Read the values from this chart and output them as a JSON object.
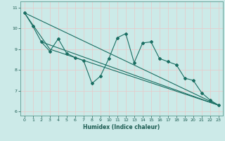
{
  "xlabel": "Humidex (Indice chaleur)",
  "bg_color": "#cceae8",
  "grid_color": "#b0d8d5",
  "line_color": "#1a6e62",
  "xlim": [
    -0.5,
    23.5
  ],
  "ylim": [
    5.8,
    11.3
  ],
  "xticks": [
    0,
    1,
    2,
    3,
    4,
    5,
    6,
    7,
    8,
    9,
    10,
    11,
    12,
    13,
    14,
    15,
    16,
    17,
    18,
    19,
    20,
    21,
    22,
    23
  ],
  "yticks": [
    6,
    7,
    8,
    9,
    10,
    11
  ],
  "line1_x": [
    0,
    1,
    2,
    3,
    4,
    5,
    6,
    7,
    8,
    9,
    10,
    11,
    12,
    13,
    14,
    15,
    16,
    17,
    18,
    19,
    20,
    21,
    22,
    23
  ],
  "line1_y": [
    10.75,
    10.1,
    9.35,
    8.9,
    9.5,
    8.8,
    8.6,
    8.45,
    7.35,
    7.7,
    8.55,
    9.55,
    9.75,
    8.35,
    9.3,
    9.35,
    8.55,
    8.4,
    8.25,
    7.6,
    7.5,
    6.9,
    6.55,
    6.3
  ],
  "line2_x": [
    0,
    23
  ],
  "line2_y": [
    10.75,
    6.3
  ],
  "line3_x": [
    2,
    23
  ],
  "line3_y": [
    9.35,
    6.3
  ],
  "line4_x": [
    0,
    3,
    23
  ],
  "line4_y": [
    10.75,
    9.0,
    6.3
  ]
}
